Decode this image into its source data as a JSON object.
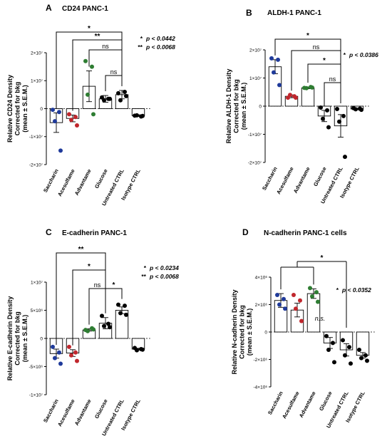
{
  "colors": {
    "Saccharin": "#1f3a9a",
    "Acesulfame": "#c0272d",
    "Advantame": "#2e7d32",
    "Glucose": "#000000",
    "Untreated CTRL": "#000000",
    "Isotype CTRL": "#000000"
  },
  "chart_data": [
    {
      "type": "bar",
      "letter": "A",
      "title": "CD24 PANC-1",
      "ylabel": [
        "Relative CD24 Density",
        "Corrected for bkg",
        "(mean ± S.E.M.)"
      ],
      "ylim": [
        -20000000,
        20000000
      ],
      "yticks": [
        -20000000,
        -10000000,
        0,
        10000000,
        20000000
      ],
      "ytick_labels": [
        "-2×10⁷",
        "-1×10⁷",
        "0",
        "1×10⁷",
        "2×10⁷"
      ],
      "categories": [
        "Saccharin",
        "Acesulfame",
        "Advantame",
        "Glucose",
        "Untreated CTRL",
        "Isotype CTRL"
      ],
      "means": [
        -5000000,
        -3500000,
        8000000,
        3500000,
        5000000,
        -2500000
      ],
      "sem": [
        3500000,
        1200000,
        5500000,
        1200000,
        1500000,
        300000
      ],
      "points": [
        [
          -400000,
          -1200000,
          -4500000,
          -15000000
        ],
        [
          -2000000,
          -3000000,
          -4000000,
          -6000000
        ],
        [
          17000000,
          15000000,
          5000000,
          -2000000
        ],
        [
          4000000,
          3500000,
          3000000,
          3500000
        ],
        [
          5500000,
          6000000,
          3000000,
          4500000
        ],
        [
          -2500000,
          -2800000,
          -2400000,
          -2600000
        ]
      ],
      "comparisons": [
        {
          "from": 0,
          "to": 4,
          "label": "*"
        },
        {
          "from": 1,
          "to": 4,
          "label": "**"
        },
        {
          "from": 2,
          "to": 4,
          "label": "ns"
        },
        {
          "from": 3,
          "to": 4,
          "label": "ns"
        }
      ],
      "legend": [
        {
          "stars": "*",
          "text": "p < 0.0442"
        },
        {
          "stars": "**",
          "text": "p < 0.0068"
        }
      ]
    },
    {
      "type": "bar",
      "letter": "B",
      "title": "ALDH-1 PANC-1",
      "ylabel": [
        "Relative ALDH-1 Density",
        "Corrected for bkg",
        "(mean ± S.E.M.)"
      ],
      "ylim": [
        -20000000,
        20000000
      ],
      "yticks": [
        -20000000,
        -10000000,
        0,
        10000000,
        20000000
      ],
      "ytick_labels": [
        "-2×10⁷",
        "-1×10⁷",
        "0",
        "1×10⁷",
        "2×10⁷"
      ],
      "categories": [
        "Saccharin",
        "Acesulfame",
        "Advantame",
        "Glucose",
        "Untreated CTRL",
        "Isotype CTRL"
      ],
      "means": [
        14000000,
        3500000,
        6500000,
        -3500000,
        -7000000,
        -1000000
      ],
      "sem": [
        2500000,
        500000,
        300000,
        2000000,
        4000000,
        300000
      ],
      "points": [
        [
          17000000,
          16500000,
          12000000,
          7500000
        ],
        [
          3000000,
          3500000,
          4000000,
          3000000
        ],
        [
          6500000,
          6800000,
          6400000,
          6600000
        ],
        [
          -500000,
          -1500000,
          -4500000,
          -7500000
        ],
        [
          -1000000,
          -3500000,
          -5500000,
          -18000000
        ],
        [
          -700000,
          -900000,
          -1100000,
          -1300000
        ]
      ],
      "comparisons": [
        {
          "from": 0,
          "to": 4,
          "label": "*"
        },
        {
          "from": 1,
          "to": 4,
          "label": "ns"
        },
        {
          "from": 2,
          "to": 4,
          "label": "*"
        },
        {
          "from": 3,
          "to": 4,
          "label": "ns"
        }
      ],
      "legend": [
        {
          "stars": "*",
          "text": "p < 0.0386"
        }
      ]
    },
    {
      "type": "bar",
      "letter": "C",
      "title": "E-cadherin PANC-1",
      "ylabel": [
        "Relative E-cadherin Density",
        "Corrected for bkg",
        "(mean ± S.E.M.)"
      ],
      "ylim": [
        -10000000,
        10000000
      ],
      "yticks": [
        -10000000,
        -5000000,
        0,
        5000000,
        10000000
      ],
      "ytick_labels": [
        "-1×10⁷",
        "-5×10⁶",
        "0",
        "5×10⁶",
        "1×10⁷"
      ],
      "categories": [
        "Saccharin",
        "Acesulfame",
        "Advantame",
        "Glucose",
        "Untreated CTRL",
        "Isotype CTRL"
      ],
      "means": [
        -2700000,
        -2600000,
        1500000,
        2700000,
        5000000,
        -1900000
      ],
      "sem": [
        800000,
        600000,
        200000,
        1000000,
        600000,
        150000
      ],
      "points": [
        [
          -1500000,
          -2500000,
          -3500000,
          -4500000
        ],
        [
          -1500000,
          -2500000,
          -3000000,
          -4000000
        ],
        [
          1500000,
          1800000,
          1300000,
          1600000
        ],
        [
          4000000,
          2600000,
          2200000,
          2000000
        ],
        [
          6000000,
          5800000,
          4500000,
          4200000
        ],
        [
          -1700000,
          -1900000,
          -2100000,
          -2000000
        ]
      ],
      "comparisons": [
        {
          "from": 0,
          "to": 3,
          "label": "**"
        },
        {
          "from": 1,
          "to": 3,
          "label": "*"
        },
        {
          "from": 2,
          "to": 3,
          "label": "ns"
        },
        {
          "from": 3,
          "to": 4,
          "label": "*"
        }
      ],
      "legend": [
        {
          "stars": "*",
          "text": "p < 0.0234"
        },
        {
          "stars": "**",
          "text": "p < 0.0068"
        }
      ]
    },
    {
      "type": "bar",
      "letter": "D",
      "title": "N-cadherin PANC-1 cells",
      "ylabel": [
        "Relative N-cadherin Density",
        "Corrected for bkg",
        "(mean ± S.E.M.)"
      ],
      "ylim": [
        -4000000,
        4000000
      ],
      "yticks": [
        -4000000,
        -2000000,
        0,
        2000000,
        4000000
      ],
      "ytick_labels": [
        "-4×10⁶",
        "-2×10⁶",
        "0",
        "2×10⁶",
        "4×10⁶"
      ],
      "categories": [
        "Saccharin",
        "Acesulfame",
        "Advantame",
        "Glucose",
        "Untreated CTRL",
        "Isotype CTRL"
      ],
      "means": [
        2300000,
        1600000,
        2800000,
        -800000,
        -1300000,
        -1700000
      ],
      "sem": [
        500000,
        500000,
        350000,
        400000,
        450000,
        200000
      ],
      "points": [
        [
          2700000,
          2400000,
          2000000,
          1700000
        ],
        [
          2700000,
          2300000,
          1700000,
          800000
        ],
        [
          3200000,
          2900000,
          2600000,
          2200000
        ],
        [
          -300000,
          -800000,
          -1300000,
          -2200000
        ],
        [
          -600000,
          -1100000,
          -1700000,
          -2300000
        ],
        [
          -1300000,
          -1700000,
          -1900000,
          -2100000
        ]
      ],
      "comparisons": [
        {
          "from": 0,
          "to": 4,
          "label": "*",
          "bracket_over": [
            0,
            1,
            2
          ]
        }
      ],
      "annotations": [
        {
          "index": 3,
          "text": "n.s."
        }
      ],
      "legend": [
        {
          "stars": "*",
          "text": "p < 0.0352"
        }
      ]
    }
  ]
}
